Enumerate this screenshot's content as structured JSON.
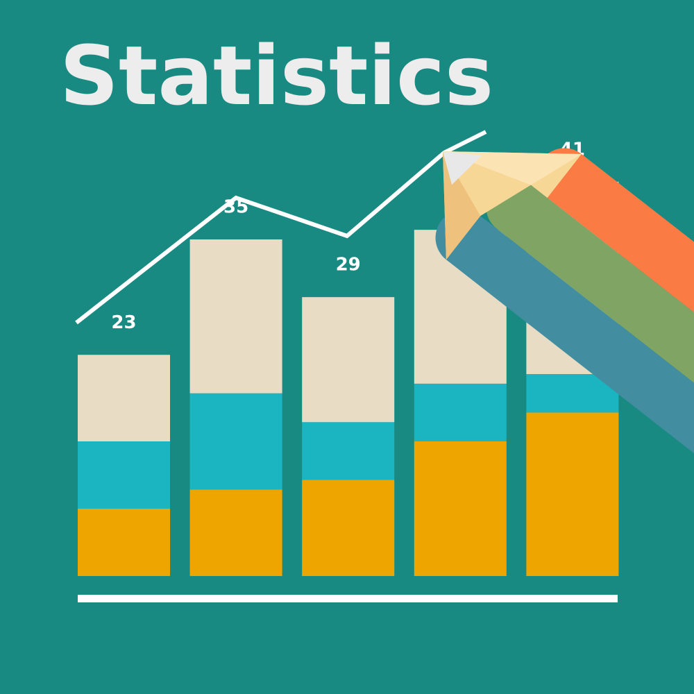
{
  "chart_data": {
    "type": "bar",
    "title": "Statistics",
    "totals": [
      23,
      35,
      29,
      36,
      41
    ],
    "series": [
      {
        "color": "#eea500",
        "values": [
          7,
          9,
          10,
          14,
          17
        ]
      },
      {
        "color": "#1ab5c1",
        "values": [
          7,
          10,
          6,
          6,
          4
        ]
      },
      {
        "color": "#e8dcc4",
        "values": [
          9,
          16,
          13,
          16,
          20
        ]
      }
    ],
    "ylim": [
      0,
      42
    ]
  }
}
